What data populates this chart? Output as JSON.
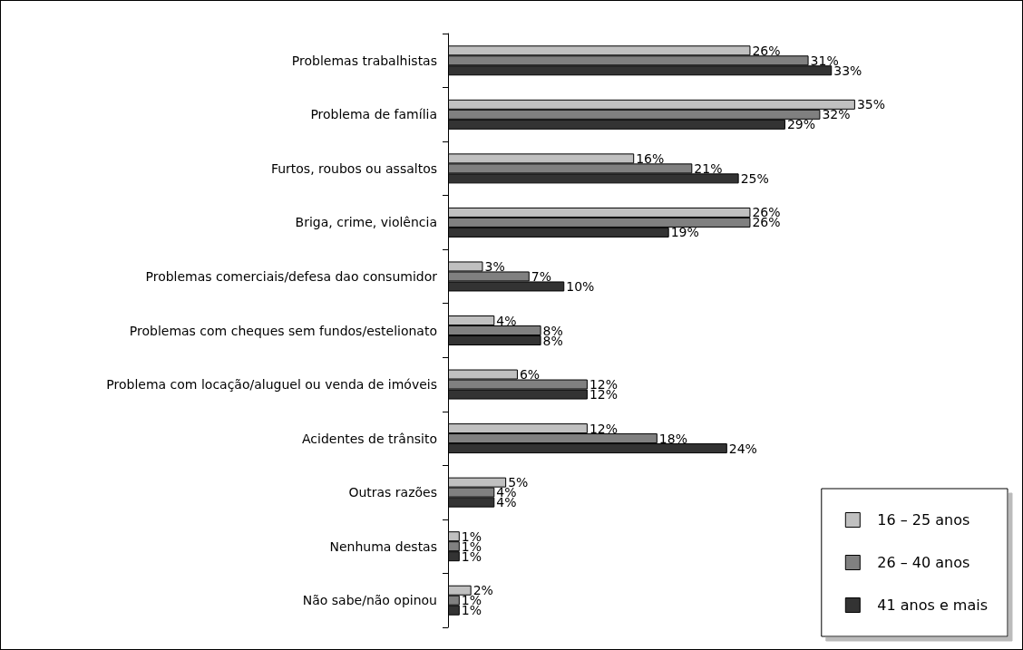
{
  "chart_data": {
    "type": "bar",
    "orientation": "horizontal",
    "tick_labels": "y",
    "legend": "bottom right",
    "categories": [
      "Problemas trabalhistas",
      "Problema de família",
      "Furtos, roubos ou assaltos",
      "Briga, crime, violência",
      "Problemas comerciais/defesa dao consumidor",
      "Problemas com cheques sem fundos/estelionato",
      "Problema com locação/aluguel ou venda de imóveis",
      "Acidentes de trânsito",
      "Outras razões",
      "Nenhuma destas",
      "Não sabe/não opinou"
    ],
    "series": [
      {
        "name": "16 – 25 anos",
        "color": "#c0c0c0",
        "values": [
          26,
          35,
          16,
          26,
          3,
          4,
          6,
          12,
          5,
          1,
          2
        ],
        "value_labels": [
          "26%",
          "35%",
          "16%",
          "26%",
          "3%",
          "4%",
          "6%",
          "12%",
          "5%",
          "1%",
          "2%"
        ]
      },
      {
        "name": "26 – 40 anos",
        "color": "#808080",
        "values": [
          31,
          32,
          21,
          26,
          7,
          8,
          12,
          18,
          4,
          1,
          1
        ],
        "value_labels": [
          "31%",
          "32%",
          "21%",
          "26%",
          "7%",
          "8%",
          "12%",
          "18%",
          "4%",
          "1%",
          "1%"
        ]
      },
      {
        "name": "41 anos e mais",
        "color": "#333333",
        "values": [
          33,
          29,
          25,
          19,
          10,
          8,
          12,
          24,
          4,
          1,
          1
        ],
        "value_labels": [
          "33%",
          "29%",
          "25%",
          "19%",
          "10%",
          "8%",
          "12%",
          "24%",
          "4%",
          "1%",
          "1%"
        ]
      }
    ]
  }
}
